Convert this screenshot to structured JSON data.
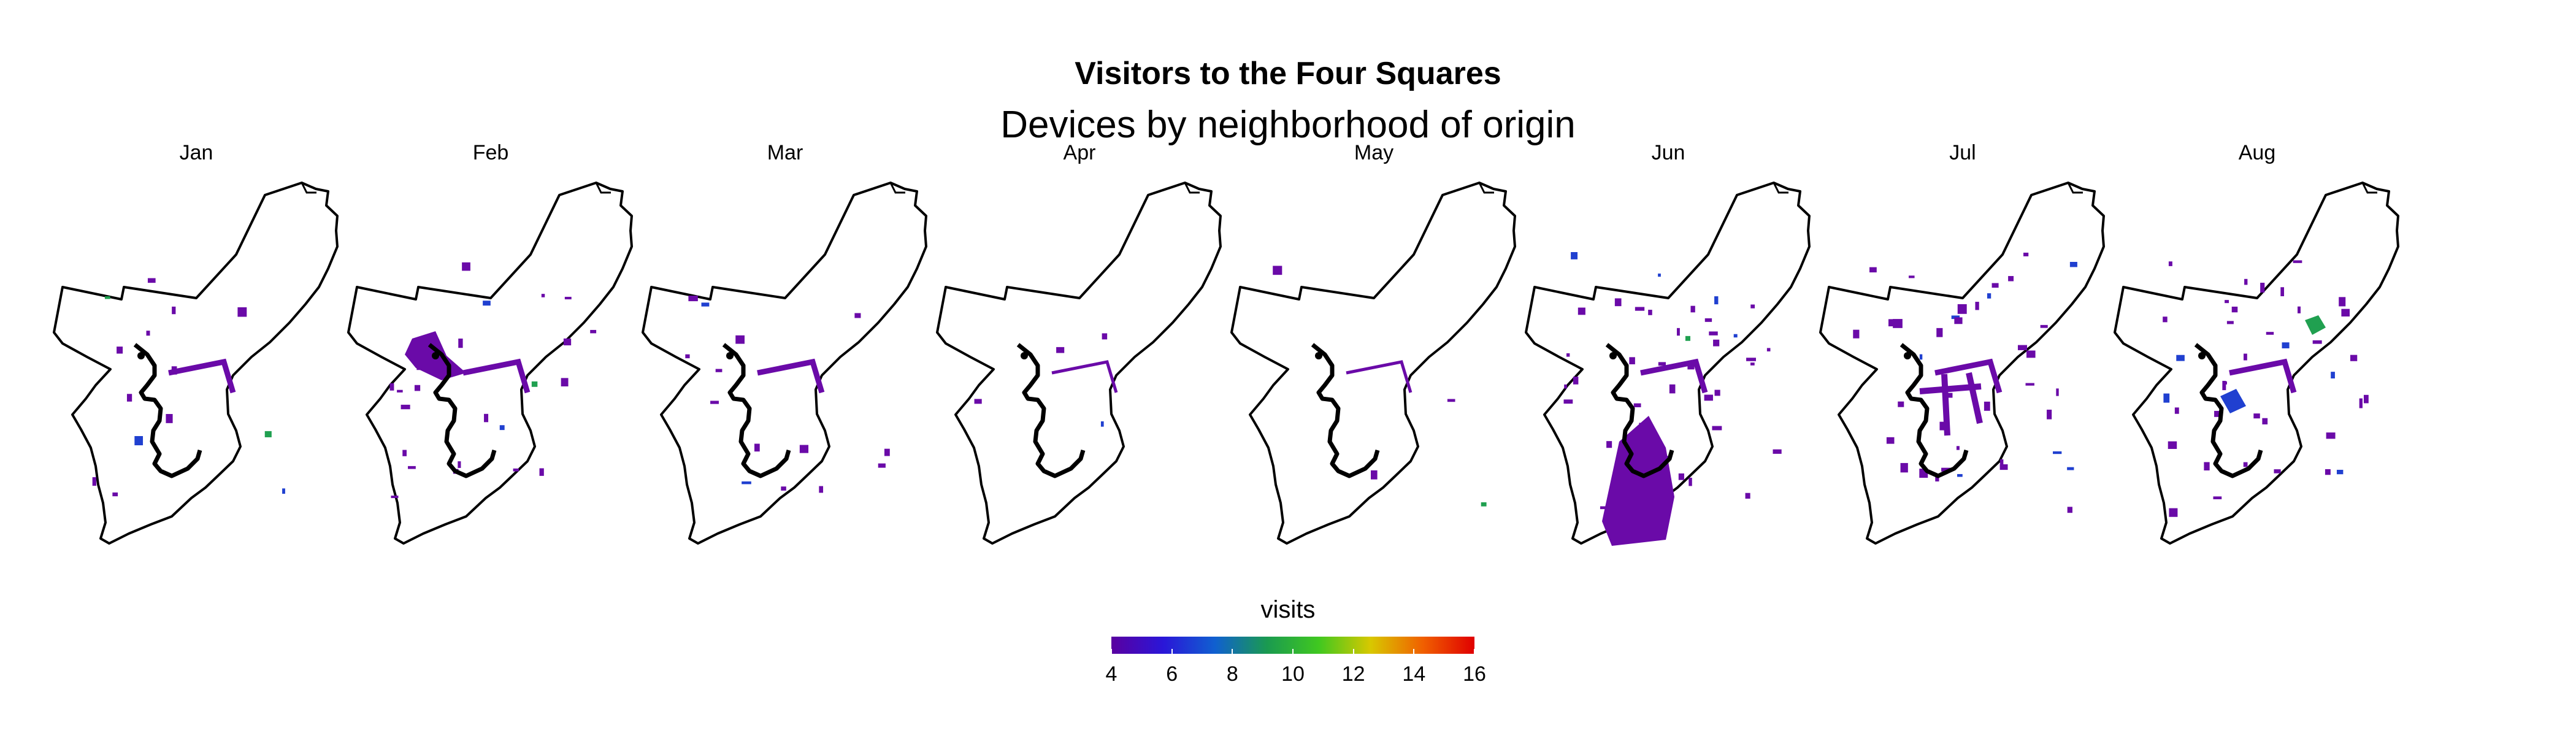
{
  "title": "Visitors to the Four Squares",
  "subtitle": "Devices by neighborhood of origin",
  "panels": [
    {
      "label": "Jan",
      "intensity": "low"
    },
    {
      "label": "Feb",
      "intensity": "medium"
    },
    {
      "label": "Mar",
      "intensity": "low"
    },
    {
      "label": "Apr",
      "intensity": "very-low"
    },
    {
      "label": "May",
      "intensity": "very-low"
    },
    {
      "label": "Jun",
      "intensity": "high"
    },
    {
      "label": "Jul",
      "intensity": "high"
    },
    {
      "label": "Aug",
      "intensity": "high"
    }
  ],
  "legend": {
    "title": "visits",
    "min": 4,
    "max": 16,
    "ticks": [
      "4",
      "6",
      "8",
      "10",
      "12",
      "14",
      "16"
    ],
    "colors": [
      "#5a00a0",
      "#2a16d8",
      "#1060d0",
      "#1a9a50",
      "#40c820",
      "#d8c800",
      "#f06000",
      "#e00000"
    ]
  },
  "colors": {
    "outline": "#000000",
    "region_low": "#6a0aa8",
    "region_blue": "#2040d0",
    "region_green": "#20a050"
  }
}
